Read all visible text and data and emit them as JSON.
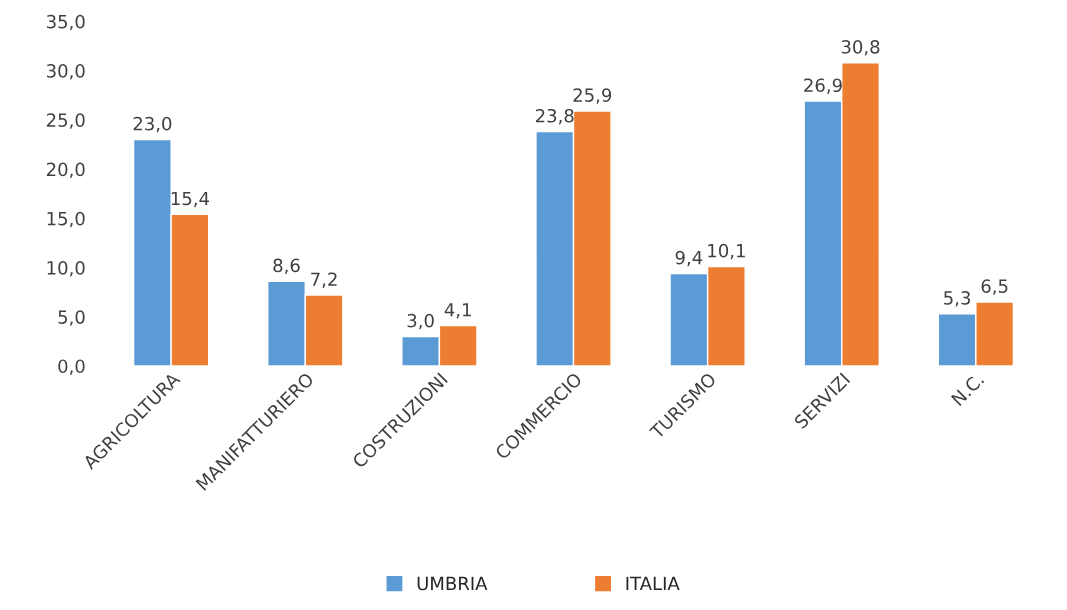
{
  "chart_data": {
    "type": "bar",
    "categories": [
      "AGRICOLTURA",
      "MANIFATTURIERO",
      "COSTRUZIONI",
      "COMMERCIO",
      "TURISMO",
      "SERVIZI",
      "N.C."
    ],
    "series": [
      {
        "name": "UMBRIA",
        "color": "#5b9bd5",
        "values": [
          23.0,
          8.6,
          3.0,
          23.8,
          9.4,
          26.9,
          5.3
        ],
        "value_labels": [
          "23,0",
          "8,6",
          "3,0",
          "23,8",
          "9,4",
          "26,9",
          "5,3"
        ]
      },
      {
        "name": "ITALIA",
        "color": "#ed7d31",
        "values": [
          15.4,
          7.2,
          4.1,
          25.9,
          10.1,
          30.8,
          6.5
        ],
        "value_labels": [
          "15,4",
          "7,2",
          "4,1",
          "25,9",
          "10,1",
          "30,8",
          "6,5"
        ]
      }
    ],
    "ylim": [
      0,
      35
    ],
    "yticks": [
      {
        "value": 0,
        "label": "0,0"
      },
      {
        "value": 5,
        "label": "5,0"
      },
      {
        "value": 10,
        "label": "10,0"
      },
      {
        "value": 15,
        "label": "15,0"
      },
      {
        "value": 20,
        "label": "20,0"
      },
      {
        "value": 25,
        "label": "25,0"
      },
      {
        "value": 30,
        "label": "30,0"
      },
      {
        "value": 35,
        "label": "35,0"
      }
    ],
    "grid": false,
    "legend": "bottom"
  }
}
